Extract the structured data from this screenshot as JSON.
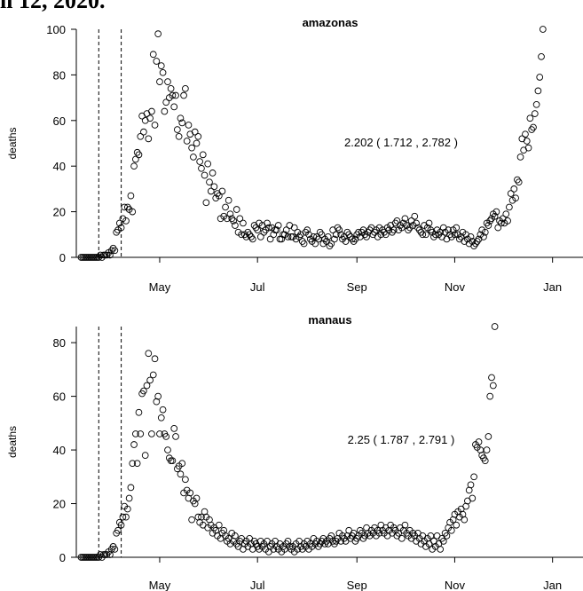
{
  "header_fragment": "il 12, 2020.",
  "chart_data": [
    {
      "type": "scatter",
      "title": "amazonas",
      "ylabel": "deaths",
      "xlabel": "",
      "x_ticks": [
        "May",
        "Jul",
        "Sep",
        "Nov",
        "Jan"
      ],
      "x_tick_dates": [
        "2020-05-01",
        "2020-07-01",
        "2020-09-01",
        "2020-11-01",
        "2021-01-01"
      ],
      "xlim": [
        "2020-03-10",
        "2021-01-20"
      ],
      "ylim": [
        0,
        100
      ],
      "y_ticks": [
        0,
        20,
        40,
        60,
        80,
        100
      ],
      "vlines": [
        "2020-03-24",
        "2020-04-07"
      ],
      "annotation": "2.202  ( 1.712 , 2.782 )",
      "series": [
        {
          "x_start": "2020-03-13",
          "values": [
            0,
            0,
            0,
            0,
            0,
            0,
            0,
            0,
            0,
            0,
            0,
            0,
            1,
            0,
            1,
            1,
            1,
            2,
            1,
            3,
            4,
            3,
            11,
            12,
            15,
            13,
            17,
            22,
            16,
            22,
            21,
            27,
            20,
            40,
            43,
            46,
            45,
            53,
            62,
            55,
            60,
            63,
            52,
            61,
            64,
            89,
            58,
            86,
            98,
            77,
            84,
            81,
            64,
            68,
            77,
            70,
            74,
            71,
            66,
            71,
            56,
            53,
            61,
            59,
            71,
            74,
            51,
            58,
            54,
            48,
            44,
            55,
            50,
            53,
            42,
            39,
            45,
            36,
            24,
            41,
            33,
            29,
            37,
            31,
            26,
            28,
            27,
            17,
            29,
            18,
            22,
            17,
            25,
            19,
            17,
            16,
            14,
            21,
            11,
            17,
            10,
            15,
            10,
            9,
            11,
            10,
            9,
            8,
            14,
            13,
            12,
            15,
            9,
            14,
            11,
            12,
            15,
            13,
            8,
            13,
            10,
            12,
            12,
            14,
            8,
            8,
            10,
            10,
            12,
            9,
            14,
            9,
            9,
            13,
            8,
            11,
            9,
            10,
            7,
            6,
            11,
            12,
            10,
            8,
            7,
            9,
            6,
            9,
            8,
            11,
            10,
            6,
            8,
            7,
            9,
            5,
            6,
            12,
            8,
            10,
            13,
            12,
            10,
            8,
            9,
            7,
            11,
            10,
            9,
            8,
            7,
            8,
            10,
            11,
            9,
            11,
            12,
            10,
            9,
            11,
            12,
            13,
            10,
            11,
            12,
            9,
            13,
            10,
            12,
            11,
            10,
            13,
            12,
            14,
            11,
            12,
            15,
            16,
            12,
            14,
            13,
            15,
            17,
            14,
            12,
            13,
            16,
            14,
            18,
            15,
            13,
            12,
            11,
            10,
            14,
            10,
            13,
            15,
            12,
            11,
            9,
            10,
            12,
            10,
            11,
            9,
            13,
            11,
            8,
            12,
            10,
            9,
            12,
            10,
            13,
            10,
            8,
            9,
            11,
            7,
            10,
            8,
            6,
            9,
            7,
            5,
            6,
            7,
            8,
            10,
            12,
            9,
            11,
            15,
            14,
            16,
            17,
            19,
            18,
            20,
            13,
            16,
            15,
            17,
            15,
            19,
            16,
            22,
            28,
            25,
            30,
            26,
            34,
            33,
            44,
            52,
            47,
            54,
            51,
            48,
            61,
            56,
            57,
            63,
            67,
            73,
            79,
            88,
            100
          ]
        }
      ]
    },
    {
      "type": "scatter",
      "title": "manaus",
      "ylabel": "deaths",
      "xlabel": "",
      "x_ticks": [
        "May",
        "Jul",
        "Sep",
        "Nov",
        "Jan"
      ],
      "x_tick_dates": [
        "2020-05-01",
        "2020-07-01",
        "2020-09-01",
        "2020-11-01",
        "2021-01-01"
      ],
      "xlim": [
        "2020-03-10",
        "2021-01-20"
      ],
      "ylim": [
        0,
        86
      ],
      "y_ticks": [
        0,
        20,
        40,
        60,
        80
      ],
      "vlines": [
        "2020-03-24",
        "2020-04-07"
      ],
      "annotation": "2.25  ( 1.787 , 2.791 )",
      "series": [
        {
          "x_start": "2020-03-13",
          "values": [
            0,
            0,
            0,
            0,
            0,
            0,
            0,
            0,
            0,
            0,
            0,
            0,
            1,
            0,
            1,
            1,
            1,
            2,
            1,
            3,
            4,
            3,
            9,
            10,
            13,
            12,
            15,
            19,
            15,
            18,
            22,
            26,
            35,
            42,
            46,
            35,
            54,
            46,
            61,
            62,
            38,
            64,
            76,
            66,
            46,
            68,
            74,
            58,
            60,
            46,
            52,
            55,
            46,
            45,
            40,
            37,
            36,
            36,
            48,
            45,
            33,
            34,
            31,
            35,
            24,
            29,
            25,
            22,
            24,
            14,
            21,
            20,
            22,
            15,
            13,
            15,
            12,
            17,
            15,
            11,
            14,
            12,
            9,
            11,
            10,
            8,
            12,
            7,
            9,
            10,
            8,
            6,
            7,
            5,
            9,
            6,
            8,
            5,
            4,
            6,
            7,
            3,
            5,
            6,
            4,
            7,
            5,
            3,
            6,
            5,
            4,
            3,
            6,
            4,
            5,
            3,
            6,
            2,
            4,
            5,
            3,
            6,
            4,
            3,
            5,
            2,
            4,
            3,
            5,
            6,
            4,
            3,
            4,
            2,
            5,
            3,
            6,
            4,
            3,
            5,
            4,
            6,
            3,
            5,
            4,
            7,
            5,
            6,
            4,
            5,
            6,
            7,
            5,
            6,
            5,
            7,
            8,
            6,
            5,
            6,
            7,
            9,
            6,
            8,
            7,
            6,
            8,
            10,
            7,
            8,
            9,
            6,
            7,
            8,
            10,
            9,
            7,
            8,
            11,
            9,
            8,
            10,
            9,
            11,
            8,
            10,
            9,
            12,
            10,
            9,
            11,
            8,
            10,
            12,
            9,
            11,
            10,
            8,
            9,
            11,
            7,
            10,
            12,
            9,
            8,
            10,
            7,
            9,
            8,
            6,
            9,
            7,
            5,
            8,
            6,
            4,
            7,
            5,
            8,
            3,
            6,
            4,
            8,
            5,
            3,
            7,
            6,
            9,
            8,
            11,
            13,
            10,
            14,
            16,
            12,
            17,
            15,
            18,
            16,
            14,
            19,
            21,
            25,
            27,
            22,
            30,
            42,
            41,
            43,
            40,
            38,
            37,
            36,
            40,
            45,
            60,
            67,
            64,
            86
          ]
        }
      ]
    }
  ]
}
